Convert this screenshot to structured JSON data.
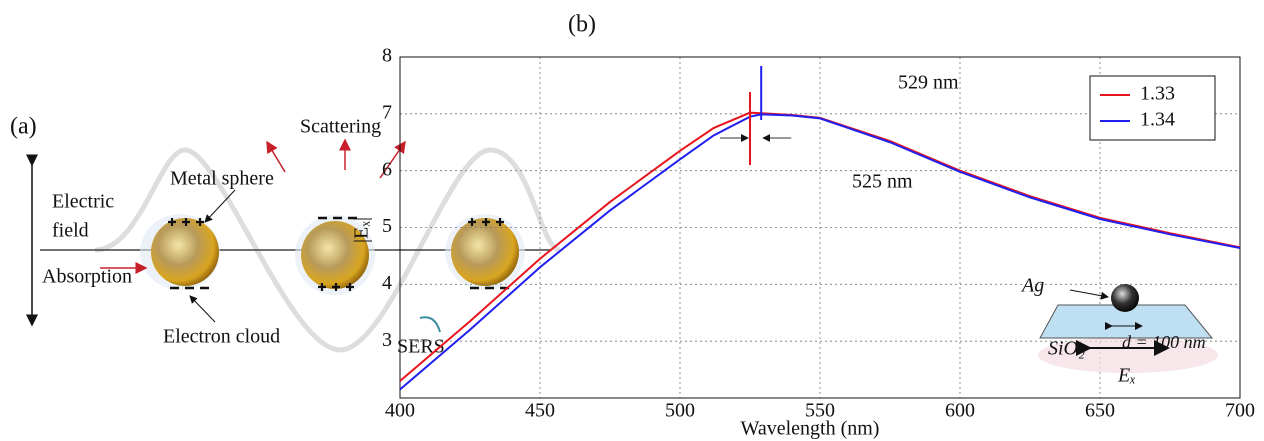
{
  "panel_a": {
    "label": "(a)",
    "scattering": "Scattering",
    "metal_sphere": "Metal sphere",
    "electric_field": [
      "Electric",
      "field"
    ],
    "absorption": "Absorption",
    "electron_cloud": "Electron cloud",
    "sers": "SERS"
  },
  "chart_data": {
    "type": "line",
    "panel_label": "(b)",
    "x_label": "Wavelength (nm)",
    "y_label": "|Eₓ|",
    "x": [
      400,
      425,
      450,
      475,
      500,
      512,
      525,
      529,
      540,
      550,
      575,
      600,
      625,
      650,
      675,
      700
    ],
    "series": [
      {
        "name": "1.33",
        "color": "#e8141e",
        "values": [
          2.3,
          3.35,
          4.45,
          5.45,
          6.35,
          6.75,
          7.02,
          7.01,
          6.98,
          6.93,
          6.52,
          6.0,
          5.55,
          5.17,
          4.9,
          4.65
        ]
      },
      {
        "name": "1.34",
        "color": "#1f1ff0",
        "values": [
          2.15,
          3.2,
          4.3,
          5.3,
          6.2,
          6.62,
          6.95,
          6.99,
          6.97,
          6.92,
          6.5,
          5.98,
          5.53,
          5.15,
          4.88,
          4.64
        ]
      }
    ],
    "xlim": [
      400,
      700
    ],
    "xticks": [
      400,
      450,
      500,
      550,
      600,
      650,
      700
    ],
    "ylim": [
      2,
      8
    ],
    "yticks": [
      3,
      4,
      5,
      6,
      7,
      8
    ],
    "grid": true,
    "legend": "upper right",
    "annotations": {
      "peak_1": "525 nm",
      "peak_2": "529 nm"
    },
    "inset": {
      "metal": "Ag",
      "substrate": "SiO₂",
      "diameter": "d = 100 nm",
      "field": "Eₓ"
    }
  }
}
